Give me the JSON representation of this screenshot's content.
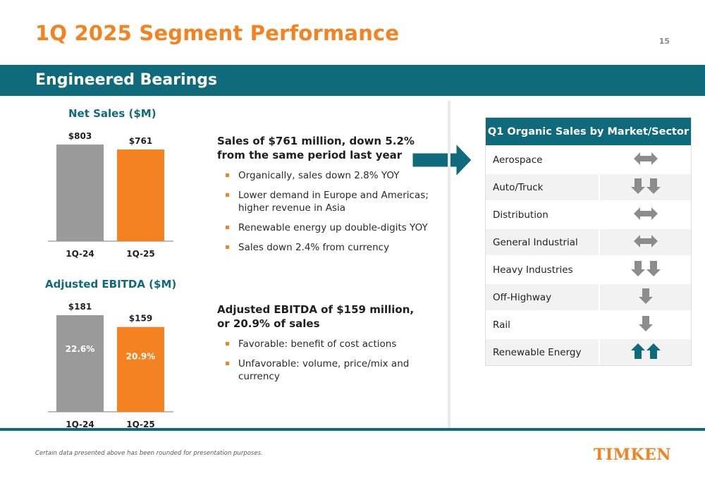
{
  "slide": {
    "title": "1Q 2025 Segment Performance",
    "page_number": "15",
    "segment": "Engineered Bearings",
    "footnote": "Certain data presented above has been rounded for presentation purposes.",
    "logo_text": "TIMKEN"
  },
  "colors": {
    "accent": "#f58220",
    "teal": "#0f6a7c",
    "gray_bar": "#9a9a9a"
  },
  "chart_data": [
    {
      "type": "bar",
      "title": "Net Sales ($M)",
      "categories": [
        "1Q-24",
        "1Q-25"
      ],
      "values": [
        803,
        761
      ],
      "value_labels": [
        "$803",
        "$761"
      ],
      "bar_colors": [
        "#9a9a9a",
        "#f58220"
      ],
      "ylim": [
        0,
        820
      ]
    },
    {
      "type": "bar",
      "title": "Adjusted EBITDA ($M)",
      "categories": [
        "1Q-24",
        "1Q-25"
      ],
      "values": [
        181,
        159
      ],
      "value_labels": [
        "$181",
        "$159"
      ],
      "inner_labels": [
        "22.6%",
        "20.9%"
      ],
      "bar_colors": [
        "#9a9a9a",
        "#f58220"
      ],
      "ylim": [
        0,
        185
      ]
    }
  ],
  "sales_block": {
    "headline": "Sales of $761 million, down 5.2% from the same period last year",
    "bullets": [
      "Organically, sales down 2.8% YOY",
      "Lower demand in Europe and Americas; higher revenue in Asia",
      "Renewable energy up double-digits YOY",
      "Sales down 2.4% from currency"
    ]
  },
  "ebitda_block": {
    "headline": "Adjusted EBITDA of $159 million, or 20.9% of sales",
    "bullets": [
      "Favorable: benefit of cost actions",
      "Unfavorable: volume, price/mix and currency"
    ]
  },
  "market_table": {
    "title": "Q1 Organic Sales by Market/Sector",
    "rows": [
      {
        "label": "Aerospace",
        "trend": "flat"
      },
      {
        "label": "Auto/Truck",
        "trend": "down-2"
      },
      {
        "label": "Distribution",
        "trend": "flat"
      },
      {
        "label": "General Industrial",
        "trend": "flat"
      },
      {
        "label": "Heavy Industries",
        "trend": "down-2"
      },
      {
        "label": "Off-Highway",
        "trend": "down-1"
      },
      {
        "label": "Rail",
        "trend": "down-1"
      },
      {
        "label": "Renewable Energy",
        "trend": "up-2"
      }
    ]
  }
}
